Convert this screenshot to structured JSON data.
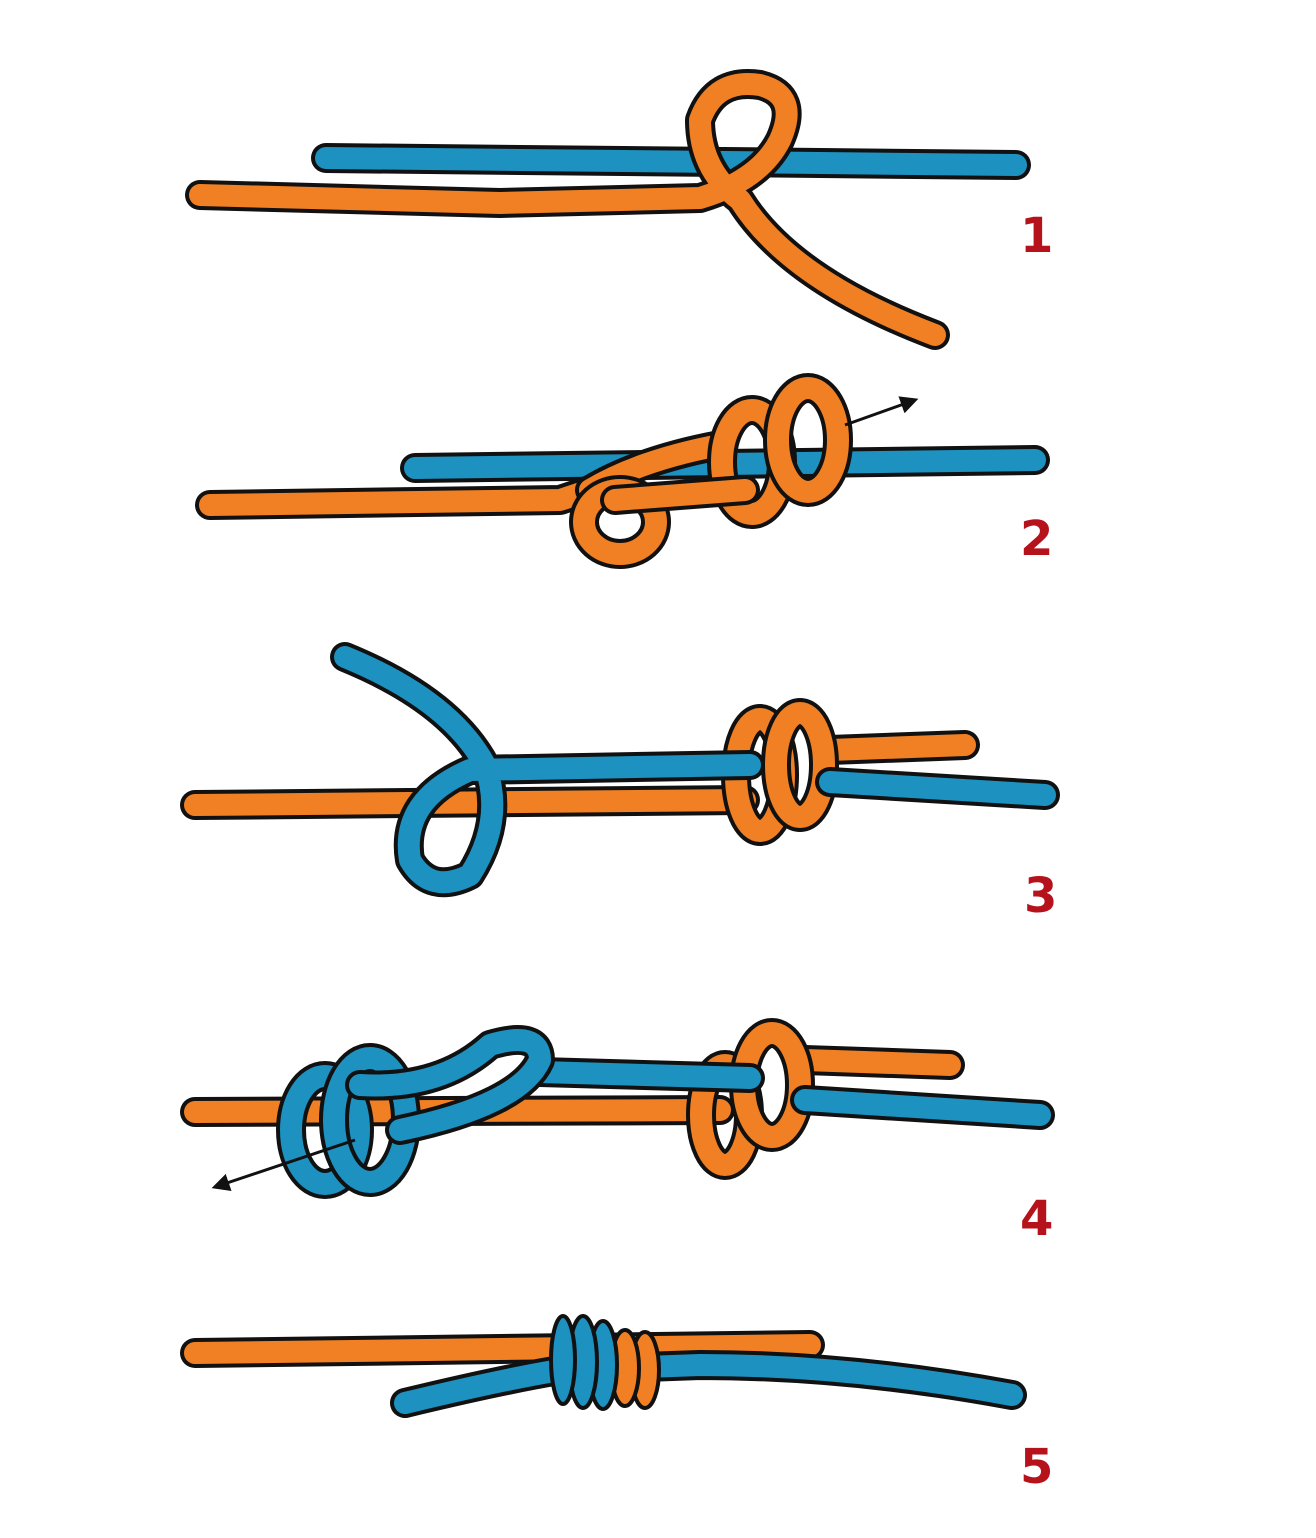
{
  "colors": {
    "orange": "#f08023",
    "blue": "#1d91c0",
    "outline": "#111111",
    "label": "#b5121b",
    "arrow": "#111111"
  },
  "steps": [
    {
      "label": "1"
    },
    {
      "label": "2"
    },
    {
      "label": "3"
    },
    {
      "label": "4"
    },
    {
      "label": "5"
    }
  ]
}
